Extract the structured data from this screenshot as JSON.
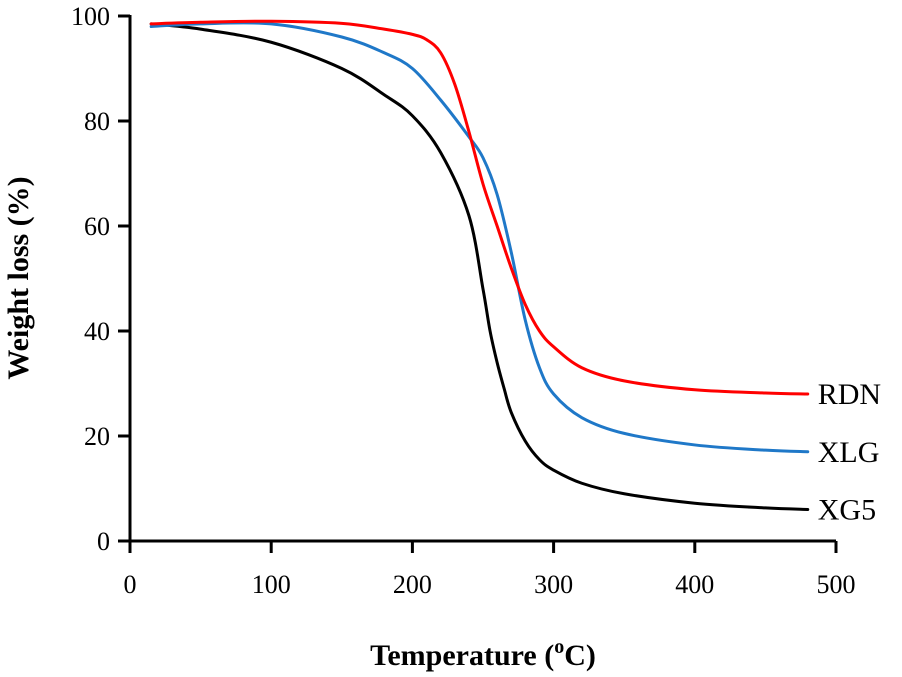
{
  "chart_data": {
    "type": "line",
    "title": "",
    "xlabel": "Temperature",
    "xlabel_unit_sup": "o",
    "xlabel_unit_rest": "C)",
    "xlabel_open": "(",
    "ylabel": "Weight loss (%)",
    "xlim": [
      0,
      500
    ],
    "ylim": [
      0,
      100
    ],
    "x_ticks": [
      0,
      100,
      200,
      300,
      400,
      500
    ],
    "y_ticks": [
      0,
      20,
      40,
      60,
      80,
      100
    ],
    "x_tick_labels": [
      "0",
      "100",
      "200",
      "300",
      "400",
      "500"
    ],
    "y_tick_labels": [
      "0",
      "20",
      "40",
      "60",
      "80",
      "100"
    ],
    "grid": false,
    "legend": "inline-right",
    "series": [
      {
        "name": "RDN",
        "color": "#ff0000",
        "x": [
          15,
          50,
          100,
          150,
          180,
          200,
          210,
          220,
          230,
          240,
          250,
          260,
          270,
          280,
          290,
          300,
          320,
          350,
          400,
          450,
          480
        ],
        "y": [
          98.5,
          98.8,
          99.0,
          98.6,
          97.5,
          96.5,
          95.5,
          93,
          87,
          78,
          68,
          60,
          52,
          45,
          40,
          37,
          33,
          30.5,
          28.8,
          28.2,
          28
        ]
      },
      {
        "name": "XLG",
        "color": "#1f78c8",
        "x": [
          15,
          50,
          100,
          150,
          180,
          200,
          220,
          240,
          250,
          260,
          270,
          280,
          290,
          300,
          320,
          350,
          400,
          450,
          480
        ],
        "y": [
          98,
          98.5,
          98.5,
          96,
          93,
          90,
          84,
          77,
          73,
          66,
          55,
          42,
          33,
          28,
          23.5,
          20.5,
          18.3,
          17.3,
          17
        ]
      },
      {
        "name": "XG5",
        "color": "#000000",
        "x": [
          15,
          50,
          100,
          150,
          180,
          200,
          220,
          240,
          250,
          255,
          260,
          265,
          270,
          280,
          290,
          300,
          320,
          350,
          400,
          450,
          480
        ],
        "y": [
          98.5,
          97.5,
          95,
          90,
          85,
          81,
          74,
          62,
          48,
          40,
          34,
          29,
          24.5,
          19,
          15.5,
          13.5,
          11,
          9,
          7.2,
          6.3,
          6
        ]
      }
    ]
  }
}
